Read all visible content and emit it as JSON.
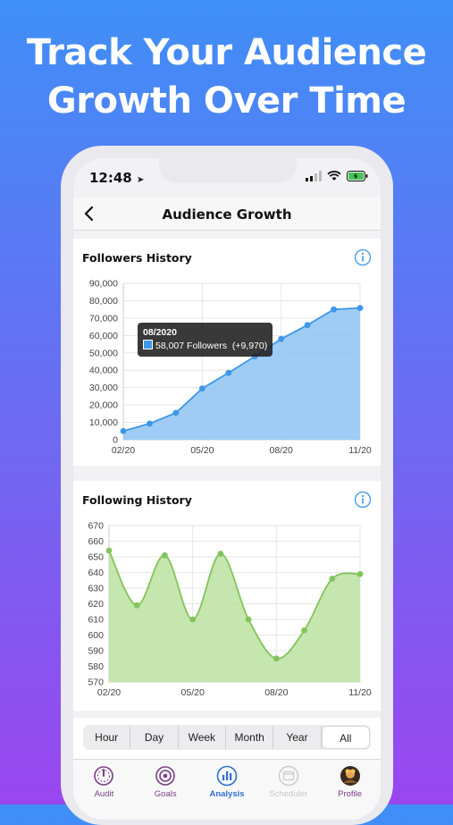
{
  "headline": {
    "line1": "Track Your Audience",
    "line2": "Growth Over Time"
  },
  "status": {
    "time": "12:48"
  },
  "navbar": {
    "title": "Audience Growth"
  },
  "colors": {
    "followers_line": "#3d97e8",
    "followers_fill": "#93c6f3",
    "following_line": "#82c45a",
    "following_fill": "#bfe3a6",
    "tab_active": "#2f6fd0",
    "tab_inactive": "#7a3f86"
  },
  "chart_data": [
    {
      "type": "area",
      "title": "Followers History",
      "categories": [
        "02/20",
        "05/20",
        "08/20",
        "11/20"
      ],
      "x": [
        "02/20",
        "03/20",
        "04/20",
        "05/20",
        "06/20",
        "07/20",
        "08/20",
        "09/20",
        "10/20",
        "11/20"
      ],
      "values": [
        5000,
        9300,
        15500,
        29500,
        38500,
        48000,
        58007,
        66000,
        75000,
        75800
      ],
      "y_ticks": [
        "0",
        "10,000",
        "20,000",
        "30,000",
        "40,000",
        "50,000",
        "60,000",
        "70,000",
        "80,000",
        "90,000"
      ],
      "ylim": [
        0,
        90000
      ],
      "grid": true,
      "tooltip": {
        "date": "08/2020",
        "text": "58,007 Followers",
        "delta": "(+9,970)"
      }
    },
    {
      "type": "area",
      "title": "Following History",
      "categories": [
        "02/20",
        "05/20",
        "08/20",
        "11/20"
      ],
      "x": [
        "02/20",
        "03/20",
        "04/20",
        "05/20",
        "06/20",
        "07/20",
        "08/20",
        "09/20",
        "10/20",
        "11/20"
      ],
      "values": [
        654,
        619,
        651,
        610,
        652,
        610,
        585,
        603,
        636,
        639
      ],
      "y_ticks": [
        "570",
        "580",
        "590",
        "600",
        "610",
        "620",
        "630",
        "640",
        "650",
        "660",
        "670"
      ],
      "ylim": [
        570,
        670
      ],
      "grid": true
    }
  ],
  "info_icon": "info-circle-icon",
  "segments": [
    {
      "label": "Hour",
      "active": false
    },
    {
      "label": "Day",
      "active": false
    },
    {
      "label": "Week",
      "active": false
    },
    {
      "label": "Month",
      "active": false
    },
    {
      "label": "Year",
      "active": false
    },
    {
      "label": "All",
      "active": true
    }
  ],
  "tabs": [
    {
      "label": "Audit",
      "icon": "audit-gauge-icon",
      "state": "normal"
    },
    {
      "label": "Goals",
      "icon": "target-icon",
      "state": "normal"
    },
    {
      "label": "Analysis",
      "icon": "bar-chart-icon",
      "state": "active"
    },
    {
      "label": "Scheduler",
      "icon": "calendar-icon",
      "state": "disabled"
    },
    {
      "label": "Profile",
      "icon": "avatar-icon",
      "state": "normal"
    }
  ]
}
